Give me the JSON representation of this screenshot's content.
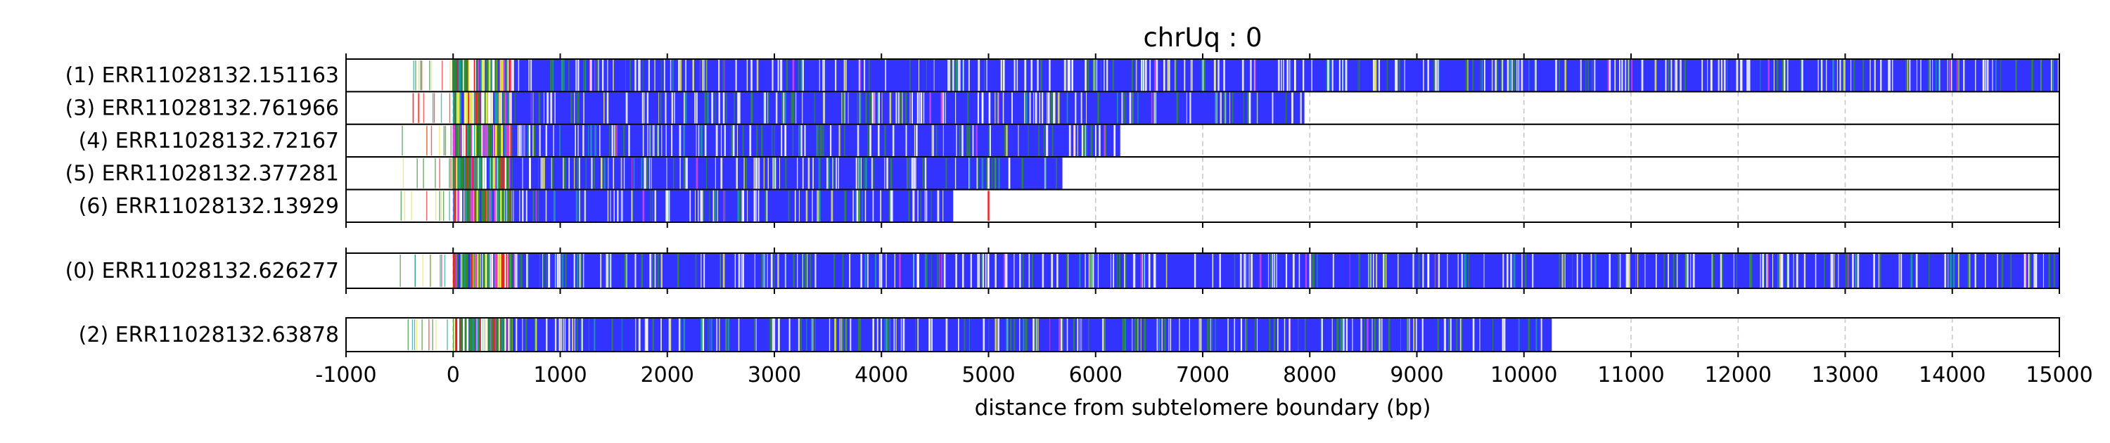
{
  "chart_data": {
    "type": "heatmap",
    "title": "chrUq : 0",
    "xlabel": "distance from subtelomere boundary (bp)",
    "ylabel": "",
    "xlim": [
      -1000,
      15000
    ],
    "xticks": [
      "-1000",
      "0",
      "1000",
      "2000",
      "3000",
      "4000",
      "5000",
      "6000",
      "7000",
      "8000",
      "9000",
      "10000",
      "11000",
      "12000",
      "13000",
      "14000",
      "15000"
    ],
    "grid": true,
    "legend": "none",
    "colors": {
      "repeat": "#3333ff",
      "variant_green": "#2e8b2e",
      "variant_teal": "#1a9e9e",
      "variant_white": "#ffffff",
      "variant_yellow": "#e8e84a",
      "variant_magenta": "#e040e0",
      "variant_red": "#ee2222",
      "background": "#ffffff",
      "grid": "#c8c8c8"
    },
    "groups": [
      {
        "reads": [
          {
            "label": "(1) ERR11028132.151163",
            "start": 0,
            "end": 15000
          },
          {
            "label": "(3) ERR11028132.761966",
            "start": 0,
            "end": 7950
          },
          {
            "label": "(4) ERR11028132.72167",
            "start": 0,
            "end": 6230
          },
          {
            "label": "(5) ERR11028132.377281",
            "start": 0,
            "end": 5690
          },
          {
            "label": "(6) ERR11028132.13929",
            "start": 0,
            "end": 4670
          }
        ]
      },
      {
        "reads": [
          {
            "label": "(0) ERR11028132.626277",
            "start": 0,
            "end": 15000
          }
        ]
      },
      {
        "reads": [
          {
            "label": "(2) ERR11028132.63878",
            "start": 0,
            "end": 10260
          }
        ]
      }
    ],
    "annotations": {
      "read_6_red_mark_bp": 5000,
      "read_1_green_band_bp": [
        1400,
        1500
      ]
    }
  }
}
